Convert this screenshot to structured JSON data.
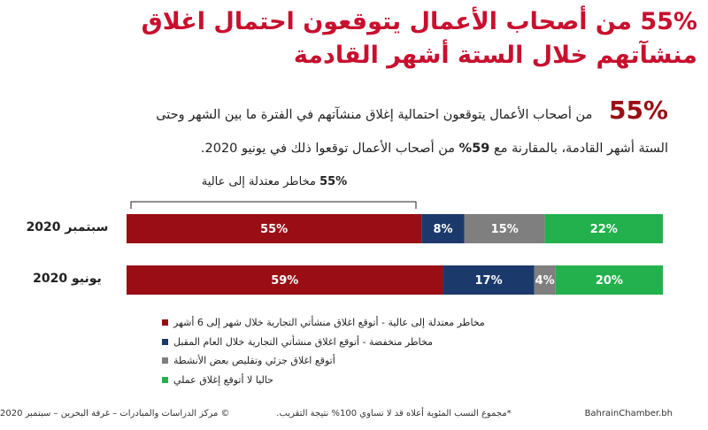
{
  "title_lines": [
    "55% من أصحاب الأعمال يتوقعون احتمال اغلاق",
    "منشآتهم خلال الستة أشهر القادمة"
  ],
  "intro": {
    "highlight": "55%",
    "line1": "من أصحاب الأعمال يتوقعون احتمالية إغلاق منشآتهم في الفترة ما بين الشهر وحتى",
    "line2_start": "الستة أشهر القادمة، بالمقارنة مع",
    "line2_bold": "59%",
    "line2_end": "من أصحاب الأعمال توقعوا ذلك في يونيو 2020."
  },
  "chart_data": {
    "type": "stacked-bar-horizontal",
    "bracket_label": {
      "bold": "55%",
      "text": "مخاطر معتدلة إلى عالية"
    },
    "categories": [
      "سبتمبر 2020",
      "يونيو 2020"
    ],
    "series": [
      {
        "name": "مخاطر معتدلة إلى عالية - أتوقع اغلاق منشأتي التجارية خلال شهر إلى 6 أشهر",
        "color": "#9b0d14",
        "values": [
          55,
          59
        ],
        "value_labels": [
          "55%",
          "59%"
        ]
      },
      {
        "name": "مخاطر منخفضة - أتوقع اغلاق منشأتي التجارية خلال العام المقبل",
        "color": "#1b3a6b",
        "values": [
          8,
          17
        ],
        "value_labels": [
          "8%",
          "17%"
        ]
      },
      {
        "name": "أتوقع اغلاق جزئي وتقليص بعض الأنشطة",
        "color": "#7f7f7f",
        "values": [
          15,
          4
        ],
        "value_labels": [
          "15%",
          "4%"
        ]
      },
      {
        "name": "حاليا لا أتوقع إغلاق عملي",
        "color": "#22b14c",
        "values": [
          22,
          20
        ],
        "value_labels": [
          "22%",
          "20%"
        ]
      }
    ]
  },
  "footer": {
    "copyright": "© مركز الدراسات والمبادرات – غرفة البحرين – سبتمبر 2020",
    "note": "*مجموع النسب المئوية أعلاه قد لا تساوي 100% نتيجة التقريب.",
    "site": "BahrainChamber.bh"
  }
}
